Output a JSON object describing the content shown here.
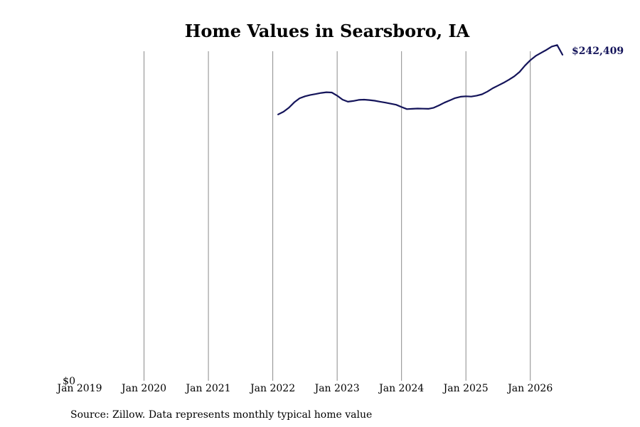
{
  "chart_data": {
    "type": "line",
    "title": "Home Values in Searsboro, IA",
    "xlabel": "",
    "ylabel": "",
    "x_tick_labels": [
      "Jan 2019",
      "Jan 2020",
      "Jan 2021",
      "Jan 2022",
      "Jan 2023",
      "Jan 2024",
      "Jan 2025",
      "Jan 2026"
    ],
    "y_tick_labels": [
      "$0"
    ],
    "ylim": [
      0,
      245000
    ],
    "xlim": [
      "2019-01",
      "2026-07"
    ],
    "grid": "vertical",
    "legend": "none",
    "line_color": "#14145a",
    "end_label": "$242,409",
    "series": [
      {
        "x": [
          "2022-02",
          "2022-03",
          "2022-04",
          "2022-05",
          "2022-06",
          "2022-07",
          "2022-08",
          "2022-09",
          "2022-10",
          "2022-11",
          "2022-12",
          "2023-01",
          "2023-02",
          "2023-03",
          "2023-04",
          "2023-05",
          "2023-06",
          "2023-07",
          "2023-08",
          "2023-09",
          "2023-10",
          "2023-11",
          "2023-12",
          "2024-01",
          "2024-02",
          "2024-03",
          "2024-04",
          "2024-05",
          "2024-06",
          "2024-07",
          "2024-08",
          "2024-09",
          "2024-10",
          "2024-11",
          "2024-12",
          "2025-01",
          "2025-02",
          "2025-03",
          "2025-04",
          "2025-05",
          "2025-06",
          "2025-07",
          "2025-08",
          "2025-09",
          "2025-10",
          "2025-11",
          "2025-12",
          "2026-01",
          "2026-02",
          "2026-03",
          "2026-04",
          "2026-05",
          "2026-06",
          "2026-07"
        ],
        "y": [
          198000,
          200000,
          203000,
          207000,
          210000,
          211500,
          212500,
          213200,
          214000,
          214500,
          214300,
          212000,
          209000,
          207500,
          208000,
          208800,
          209000,
          208700,
          208200,
          207500,
          206800,
          206000,
          205200,
          203500,
          202000,
          202200,
          202400,
          202300,
          202200,
          203000,
          204800,
          206800,
          208500,
          210200,
          211200,
          211500,
          211300,
          212000,
          213000,
          215000,
          217500,
          219500,
          221500,
          223800,
          226300,
          229600,
          234300,
          238300,
          241500,
          243800,
          246000,
          248500,
          249600,
          242409
        ]
      }
    ]
  },
  "source_note": "Source: Zillow. Data represents monthly typical home value"
}
